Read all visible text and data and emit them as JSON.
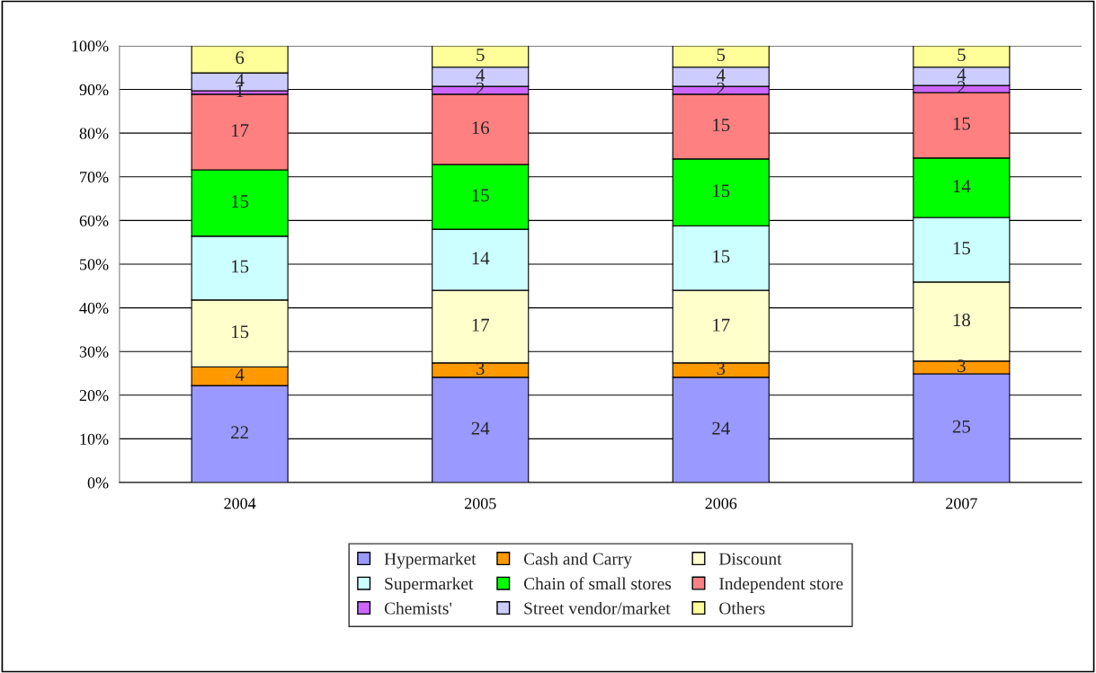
{
  "chart_data": {
    "type": "bar",
    "stacked": true,
    "categories": [
      "2004",
      "2005",
      "2006",
      "2007"
    ],
    "series": [
      {
        "name": "Hypermarket",
        "color": "#9999ff",
        "values": [
          22.2,
          24.1,
          24.1,
          24.9
        ],
        "value_labels": [
          "22",
          "24",
          "24",
          "25"
        ]
      },
      {
        "name": "Cash and Carry",
        "color": "#ff9900",
        "values": [
          4.3,
          3.3,
          3.3,
          2.9
        ],
        "value_labels": [
          "4",
          "3",
          "3",
          "3"
        ]
      },
      {
        "name": "Discount",
        "color": "#ffffcc",
        "values": [
          15.3,
          16.6,
          16.6,
          18.1
        ],
        "value_labels": [
          "15",
          "17",
          "17",
          "18"
        ]
      },
      {
        "name": "Supermarket",
        "color": "#ccffff",
        "values": [
          14.6,
          14.0,
          14.8,
          14.8
        ],
        "value_labels": [
          "15",
          "14",
          "15",
          "15"
        ]
      },
      {
        "name": "Chain of small stores",
        "color": "#00ff00",
        "values": [
          15.2,
          14.8,
          15.3,
          13.6
        ],
        "value_labels": [
          "15",
          "15",
          "15",
          "14"
        ]
      },
      {
        "name": "Independent store",
        "color": "#ff8080",
        "values": [
          17.3,
          16.1,
          14.8,
          15.0
        ],
        "value_labels": [
          "17",
          "16",
          "15",
          "15"
        ]
      },
      {
        "name": "Chemists'",
        "color": "#cc66ff",
        "values": [
          0.8,
          1.8,
          1.8,
          1.6
        ],
        "value_labels": [
          "1",
          "2",
          "2",
          "2"
        ]
      },
      {
        "name": "Street vendor/market",
        "color": "#ccccff",
        "values": [
          4.1,
          4.4,
          4.4,
          4.2
        ],
        "value_labels": [
          "4",
          "4",
          "4",
          "4"
        ]
      },
      {
        "name": "Others",
        "color": "#ffff99",
        "values": [
          6.2,
          4.9,
          4.9,
          4.9
        ],
        "value_labels": [
          "6",
          "5",
          "5",
          "5"
        ]
      }
    ],
    "ylim": [
      0,
      100
    ],
    "yticks": [
      {
        "value": 0,
        "label": "0%"
      },
      {
        "value": 10,
        "label": "10%"
      },
      {
        "value": 20,
        "label": "20%"
      },
      {
        "value": 30,
        "label": "30%"
      },
      {
        "value": 40,
        "label": "40%"
      },
      {
        "value": 50,
        "label": "50%"
      },
      {
        "value": 60,
        "label": "60%"
      },
      {
        "value": 70,
        "label": "70%"
      },
      {
        "value": 80,
        "label": "80%"
      },
      {
        "value": 90,
        "label": "90%"
      },
      {
        "value": 100,
        "label": "100%"
      }
    ],
    "grid": "y",
    "legend": "bottom"
  }
}
